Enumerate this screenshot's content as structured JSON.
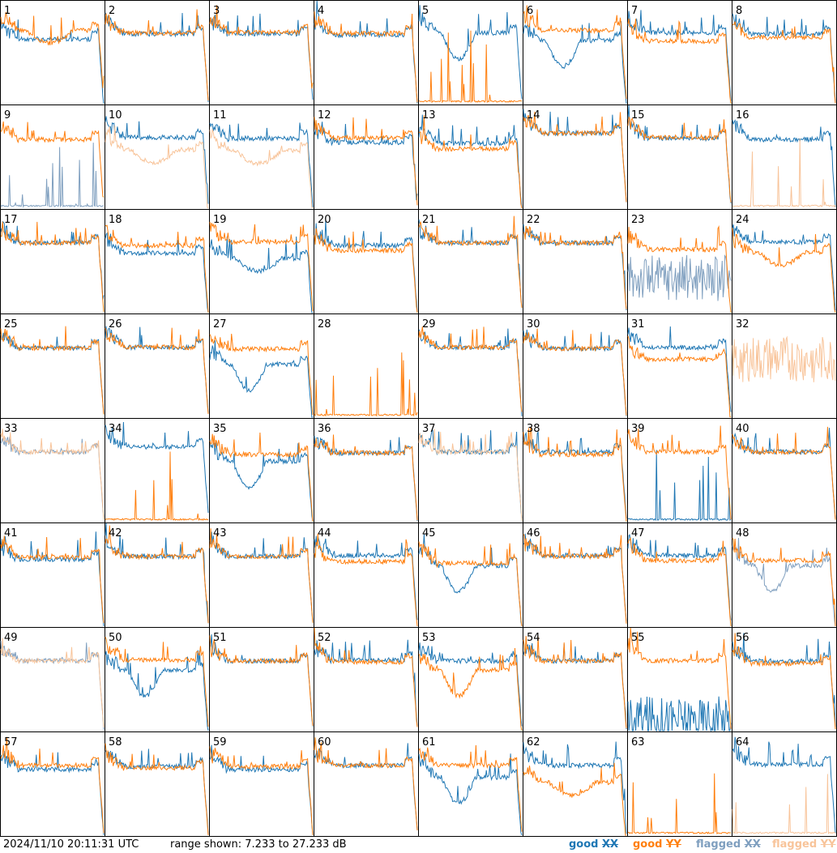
{
  "colors": {
    "good_xx": "#1f77b4",
    "good_yy": "#ff7f0e",
    "flagged_xx": "#7f9fbf",
    "flagged_yy": "#f8c49a"
  },
  "footer": {
    "timestamp": "2024/11/10 20:11:31 UTC",
    "range": "range shown: 7.233 to 27.233 dB",
    "legend_good": "good",
    "legend_flagged": "flagged",
    "legend_xx": "XX",
    "legend_yy": "YY"
  },
  "chart_data": {
    "type": "line",
    "layout": "8x8 small multiples, one panel per antenna",
    "y_range_db": [
      7.233,
      27.233
    ],
    "y_unit": "dB",
    "legend_placement": "bottom-right",
    "series_names": [
      "good XX",
      "good YY",
      "flagged XX",
      "flagged YY"
    ],
    "panels": [
      {
        "label": "1",
        "xx": {
          "p": "std",
          "lv": 19.8,
          "st": "good"
        },
        "yy": {
          "p": "low",
          "lv": 21.5,
          "st": "good"
        }
      },
      {
        "label": "2",
        "xx": {
          "p": "std",
          "lv": 20.8,
          "st": "good"
        },
        "yy": {
          "p": "std",
          "lv": 21.0,
          "st": "good"
        }
      },
      {
        "label": "3",
        "xx": {
          "p": "std",
          "lv": 20.8,
          "st": "good"
        },
        "yy": {
          "p": "std",
          "lv": 21.1,
          "st": "good"
        }
      },
      {
        "label": "4",
        "xx": {
          "p": "std",
          "lv": 20.6,
          "st": "good"
        },
        "yy": {
          "p": "std",
          "lv": 20.9,
          "st": "good"
        }
      },
      {
        "label": "5",
        "xx": {
          "p": "dip",
          "lv": 21.0,
          "st": "good"
        },
        "yy": {
          "p": "spike",
          "lv": 7.6,
          "st": "good"
        }
      },
      {
        "label": "6",
        "xx": {
          "p": "dip",
          "lv": 19.5,
          "st": "good"
        },
        "yy": {
          "p": "std",
          "lv": 21.5,
          "st": "good"
        }
      },
      {
        "label": "7",
        "xx": {
          "p": "std",
          "lv": 21.0,
          "st": "good"
        },
        "yy": {
          "p": "std",
          "lv": 19.4,
          "st": "good"
        }
      },
      {
        "label": "8",
        "xx": {
          "p": "std",
          "lv": 20.8,
          "st": "good"
        },
        "yy": {
          "p": "std",
          "lv": 20.1,
          "st": "good"
        }
      },
      {
        "label": "9",
        "xx": {
          "p": "spike",
          "lv": 8.5,
          "st": "flagged"
        },
        "yy": {
          "p": "std",
          "lv": 20.6,
          "st": "good"
        }
      },
      {
        "label": "10",
        "xx": {
          "p": "std",
          "lv": 21.0,
          "st": "good"
        },
        "yy": {
          "p": "low",
          "lv": 18.6,
          "st": "flagged"
        }
      },
      {
        "label": "11",
        "xx": {
          "p": "std",
          "lv": 20.8,
          "st": "good"
        },
        "yy": {
          "p": "low",
          "lv": 18.4,
          "st": "flagged"
        }
      },
      {
        "label": "12",
        "xx": {
          "p": "std",
          "lv": 20.0,
          "st": "good"
        },
        "yy": {
          "p": "std",
          "lv": 20.9,
          "st": "good"
        }
      },
      {
        "label": "13",
        "xx": {
          "p": "std",
          "lv": 19.8,
          "st": "good"
        },
        "yy": {
          "p": "std",
          "lv": 18.8,
          "st": "good"
        }
      },
      {
        "label": "14",
        "xx": {
          "p": "std",
          "lv": 21.8,
          "st": "good"
        },
        "yy": {
          "p": "std",
          "lv": 21.8,
          "st": "good"
        }
      },
      {
        "label": "15",
        "xx": {
          "p": "std",
          "lv": 20.8,
          "st": "good"
        },
        "yy": {
          "p": "std",
          "lv": 21.0,
          "st": "good"
        }
      },
      {
        "label": "16",
        "xx": {
          "p": "std",
          "lv": 20.6,
          "st": "good"
        },
        "yy": {
          "p": "spike",
          "lv": 7.6,
          "st": "flagged"
        }
      },
      {
        "label": "17",
        "xx": {
          "p": "std",
          "lv": 20.8,
          "st": "good"
        },
        "yy": {
          "p": "std",
          "lv": 20.8,
          "st": "good"
        }
      },
      {
        "label": "18",
        "xx": {
          "p": "std",
          "lv": 18.8,
          "st": "good"
        },
        "yy": {
          "p": "std",
          "lv": 20.3,
          "st": "good"
        }
      },
      {
        "label": "19",
        "xx": {
          "p": "low",
          "lv": 17.8,
          "st": "good"
        },
        "yy": {
          "p": "std",
          "lv": 21.0,
          "st": "good"
        }
      },
      {
        "label": "20",
        "xx": {
          "p": "std",
          "lv": 20.3,
          "st": "good"
        },
        "yy": {
          "p": "std",
          "lv": 19.3,
          "st": "good"
        }
      },
      {
        "label": "21",
        "xx": {
          "p": "std",
          "lv": 20.8,
          "st": "good"
        },
        "yy": {
          "p": "std",
          "lv": 20.8,
          "st": "good"
        }
      },
      {
        "label": "22",
        "xx": {
          "p": "std",
          "lv": 20.8,
          "st": "good"
        },
        "yy": {
          "p": "std",
          "lv": 20.8,
          "st": "good"
        }
      },
      {
        "label": "23",
        "xx": {
          "p": "noise",
          "lv": 14.0,
          "st": "flagged"
        },
        "yy": {
          "p": "std",
          "lv": 19.5,
          "st": "good"
        }
      },
      {
        "label": "24",
        "xx": {
          "p": "std",
          "lv": 21.0,
          "st": "good"
        },
        "yy": {
          "p": "low",
          "lv": 19.0,
          "st": "good"
        }
      },
      {
        "label": "25",
        "xx": {
          "p": "std",
          "lv": 20.7,
          "st": "good"
        },
        "yy": {
          "p": "std",
          "lv": 20.7,
          "st": "good"
        }
      },
      {
        "label": "26",
        "xx": {
          "p": "std",
          "lv": 20.8,
          "st": "good"
        },
        "yy": {
          "p": "std",
          "lv": 20.8,
          "st": "good"
        }
      },
      {
        "label": "27",
        "xx": {
          "p": "dip",
          "lv": 17.5,
          "st": "good"
        },
        "yy": {
          "p": "std",
          "lv": 20.5,
          "st": "good"
        }
      },
      {
        "label": "28",
        "xx": {
          "p": "none",
          "lv": 0,
          "st": "good"
        },
        "yy": {
          "p": "spike",
          "lv": 7.6,
          "st": "good"
        }
      },
      {
        "label": "29",
        "xx": {
          "p": "std",
          "lv": 20.8,
          "st": "good"
        },
        "yy": {
          "p": "std",
          "lv": 20.8,
          "st": "good"
        }
      },
      {
        "label": "30",
        "xx": {
          "p": "std",
          "lv": 20.6,
          "st": "good"
        },
        "yy": {
          "p": "std",
          "lv": 20.6,
          "st": "good"
        }
      },
      {
        "label": "31",
        "xx": {
          "p": "std",
          "lv": 20.8,
          "st": "good"
        },
        "yy": {
          "p": "std",
          "lv": 18.5,
          "st": "good"
        }
      },
      {
        "label": "32",
        "xx": {
          "p": "none",
          "lv": 0,
          "st": "flagged"
        },
        "yy": {
          "p": "noise",
          "lv": 18.5,
          "st": "flagged"
        }
      },
      {
        "label": "33",
        "xx": {
          "p": "std",
          "lv": 20.8,
          "st": "flagged"
        },
        "yy": {
          "p": "std",
          "lv": 20.8,
          "st": "flagged"
        }
      },
      {
        "label": "34",
        "xx": {
          "p": "std",
          "lv": 21.8,
          "st": "good"
        },
        "yy": {
          "p": "spike",
          "lv": 8.0,
          "st": "good"
        }
      },
      {
        "label": "35",
        "xx": {
          "p": "dip",
          "lv": 19.0,
          "st": "good"
        },
        "yy": {
          "p": "std",
          "lv": 20.3,
          "st": "good"
        }
      },
      {
        "label": "36",
        "xx": {
          "p": "std",
          "lv": 20.6,
          "st": "good"
        },
        "yy": {
          "p": "std",
          "lv": 20.6,
          "st": "good"
        }
      },
      {
        "label": "37",
        "xx": {
          "p": "std",
          "lv": 20.8,
          "st": "good"
        },
        "yy": {
          "p": "std",
          "lv": 20.8,
          "st": "flagged"
        }
      },
      {
        "label": "38",
        "xx": {
          "p": "std",
          "lv": 20.8,
          "st": "good"
        },
        "yy": {
          "p": "std",
          "lv": 20.3,
          "st": "good"
        }
      },
      {
        "label": "39",
        "xx": {
          "p": "spike",
          "lv": 7.6,
          "st": "good"
        },
        "yy": {
          "p": "std",
          "lv": 20.8,
          "st": "good"
        }
      },
      {
        "label": "40",
        "xx": {
          "p": "std",
          "lv": 20.8,
          "st": "good"
        },
        "yy": {
          "p": "std",
          "lv": 20.8,
          "st": "good"
        }
      },
      {
        "label": "41",
        "xx": {
          "p": "std",
          "lv": 20.2,
          "st": "good"
        },
        "yy": {
          "p": "std",
          "lv": 20.6,
          "st": "good"
        }
      },
      {
        "label": "42",
        "xx": {
          "p": "std",
          "lv": 20.8,
          "st": "good"
        },
        "yy": {
          "p": "std",
          "lv": 20.8,
          "st": "good"
        }
      },
      {
        "label": "43",
        "xx": {
          "p": "std",
          "lv": 20.8,
          "st": "good"
        },
        "yy": {
          "p": "std",
          "lv": 20.8,
          "st": "good"
        }
      },
      {
        "label": "44",
        "xx": {
          "p": "std",
          "lv": 21.0,
          "st": "good"
        },
        "yy": {
          "p": "std",
          "lv": 19.8,
          "st": "good"
        }
      },
      {
        "label": "45",
        "xx": {
          "p": "dip",
          "lv": 19.0,
          "st": "good"
        },
        "yy": {
          "p": "std",
          "lv": 19.5,
          "st": "good"
        }
      },
      {
        "label": "46",
        "xx": {
          "p": "std",
          "lv": 21.0,
          "st": "good"
        },
        "yy": {
          "p": "std",
          "lv": 20.8,
          "st": "good"
        }
      },
      {
        "label": "47",
        "xx": {
          "p": "std",
          "lv": 21.0,
          "st": "good"
        },
        "yy": {
          "p": "std",
          "lv": 20.0,
          "st": "good"
        }
      },
      {
        "label": "48",
        "xx": {
          "p": "dip",
          "lv": 19.0,
          "st": "flagged"
        },
        "yy": {
          "p": "std",
          "lv": 20.0,
          "st": "good"
        }
      },
      {
        "label": "49",
        "xx": {
          "p": "std",
          "lv": 20.8,
          "st": "flagged"
        },
        "yy": {
          "p": "std",
          "lv": 20.8,
          "st": "flagged"
        }
      },
      {
        "label": "50",
        "xx": {
          "p": "dip",
          "lv": 19.0,
          "st": "good"
        },
        "yy": {
          "p": "std",
          "lv": 21.0,
          "st": "good"
        }
      },
      {
        "label": "51",
        "xx": {
          "p": "std",
          "lv": 20.8,
          "st": "good"
        },
        "yy": {
          "p": "std",
          "lv": 20.8,
          "st": "good"
        }
      },
      {
        "label": "52",
        "xx": {
          "p": "std",
          "lv": 21.0,
          "st": "good"
        },
        "yy": {
          "p": "std",
          "lv": 20.6,
          "st": "good"
        }
      },
      {
        "label": "53",
        "xx": {
          "p": "std",
          "lv": 20.8,
          "st": "good"
        },
        "yy": {
          "p": "dip",
          "lv": 19.0,
          "st": "good"
        }
      },
      {
        "label": "54",
        "xx": {
          "p": "std",
          "lv": 20.8,
          "st": "good"
        },
        "yy": {
          "p": "std",
          "lv": 20.8,
          "st": "good"
        }
      },
      {
        "label": "55",
        "xx": {
          "p": "noise",
          "lv": 9.5,
          "st": "good"
        },
        "yy": {
          "p": "std",
          "lv": 20.8,
          "st": "good"
        }
      },
      {
        "label": "56",
        "xx": {
          "p": "std",
          "lv": 20.8,
          "st": "good"
        },
        "yy": {
          "p": "std",
          "lv": 20.3,
          "st": "good"
        }
      },
      {
        "label": "57",
        "xx": {
          "p": "std",
          "lv": 20.0,
          "st": "good"
        },
        "yy": {
          "p": "std",
          "lv": 20.8,
          "st": "good"
        }
      },
      {
        "label": "58",
        "xx": {
          "p": "std",
          "lv": 20.6,
          "st": "good"
        },
        "yy": {
          "p": "std",
          "lv": 20.3,
          "st": "good"
        }
      },
      {
        "label": "59",
        "xx": {
          "p": "std",
          "lv": 20.0,
          "st": "good"
        },
        "yy": {
          "p": "std",
          "lv": 20.6,
          "st": "good"
        }
      },
      {
        "label": "60",
        "xx": {
          "p": "std",
          "lv": 20.8,
          "st": "good"
        },
        "yy": {
          "p": "std",
          "lv": 20.8,
          "st": "good"
        }
      },
      {
        "label": "61",
        "xx": {
          "p": "dip",
          "lv": 18.5,
          "st": "good"
        },
        "yy": {
          "p": "std",
          "lv": 20.8,
          "st": "good"
        }
      },
      {
        "label": "62",
        "xx": {
          "p": "std",
          "lv": 20.8,
          "st": "good"
        },
        "yy": {
          "p": "low",
          "lv": 17.5,
          "st": "good"
        }
      },
      {
        "label": "63",
        "xx": {
          "p": "none",
          "lv": 0,
          "st": "good"
        },
        "yy": {
          "p": "spike",
          "lv": 7.6,
          "st": "good"
        }
      },
      {
        "label": "64",
        "xx": {
          "p": "std",
          "lv": 21.0,
          "st": "good"
        },
        "yy": {
          "p": "spike",
          "lv": 7.6,
          "st": "flagged"
        }
      }
    ]
  }
}
